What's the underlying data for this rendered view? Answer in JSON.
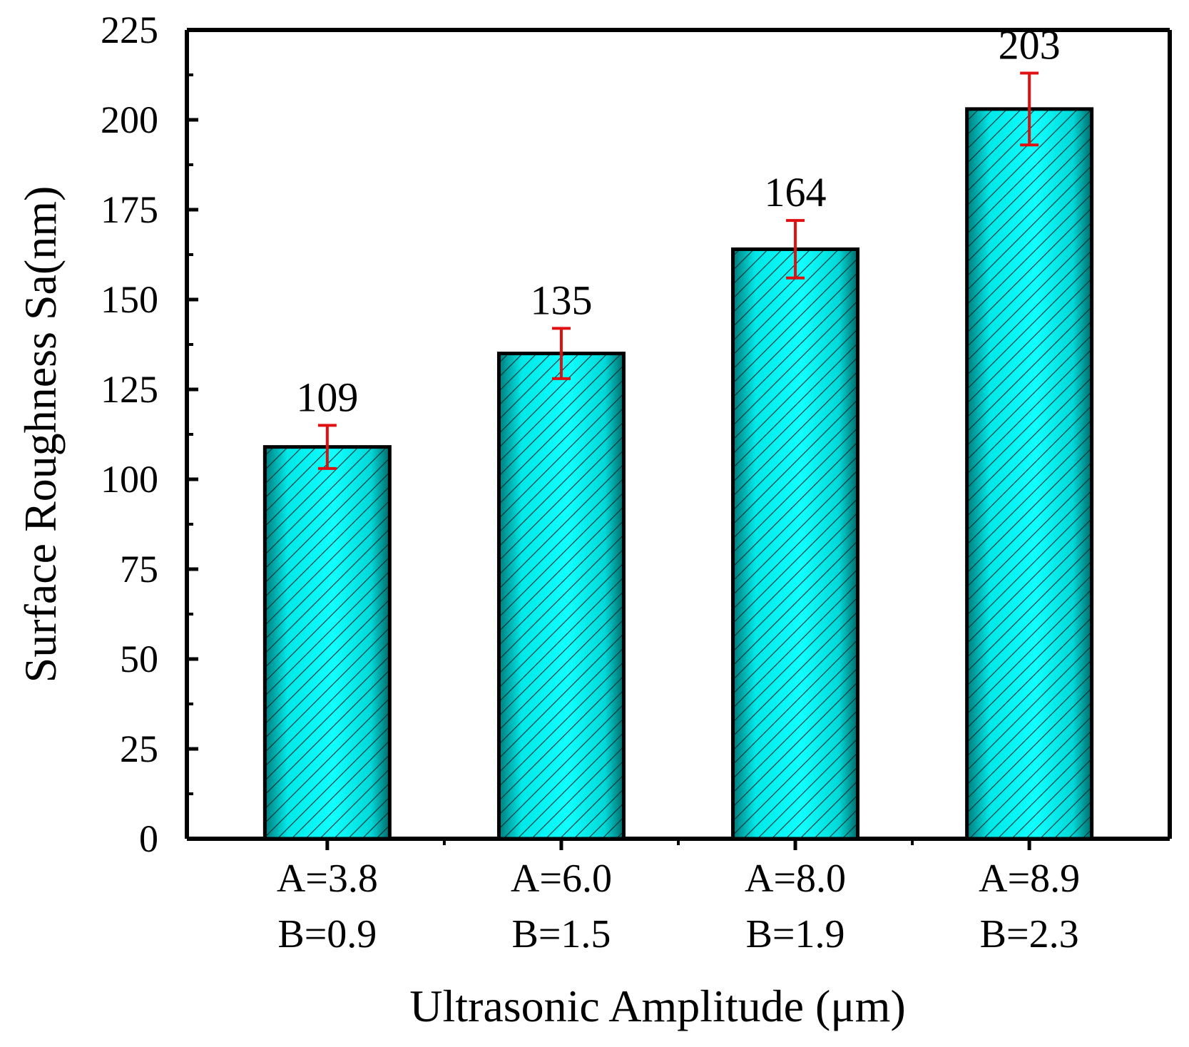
{
  "chart_data": {
    "type": "bar",
    "title": "",
    "xlabel": "Ultrasonic Amplitude (μm)",
    "ylabel": "Surface Roughness Sa(nm)",
    "ylim": [
      0,
      225
    ],
    "yticks": [
      0,
      25,
      50,
      75,
      100,
      125,
      150,
      175,
      200,
      225
    ],
    "grid": false,
    "categories": [
      {
        "line1": "A=3.8",
        "line2": "B=0.9"
      },
      {
        "line1": "A=6.0",
        "line2": "B=1.5"
      },
      {
        "line1": "A=8.0",
        "line2": "B=1.9"
      },
      {
        "line1": "A=8.9",
        "line2": "B=2.3"
      }
    ],
    "series": [
      {
        "name": "Surface Roughness Sa",
        "values": [
          109,
          135,
          164,
          203
        ],
        "error_low": [
          103,
          128,
          156,
          193
        ],
        "error_high": [
          115,
          142,
          172,
          213
        ],
        "value_labels": [
          "109",
          "135",
          "164",
          "203"
        ]
      }
    ],
    "colors": {
      "bar_fill": "#00e0e0",
      "bar_edge": "#000000",
      "hatch": "#0a2a2a",
      "error_bar": "#e01010"
    }
  }
}
